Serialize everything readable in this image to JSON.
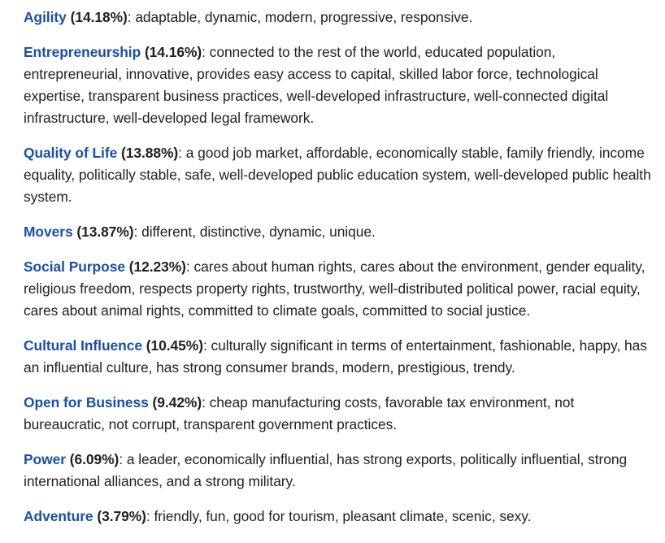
{
  "items": [
    {
      "term": "Agility",
      "pct": " (14.18%)",
      "desc": ": adaptable, dynamic, modern, progressive, responsive."
    },
    {
      "term": "Entrepreneurship",
      "pct": " (14.16%)",
      "desc": ": connected to the rest of the world, educated population, entrepreneurial, innovative, provides easy access to capital, skilled labor force, technological expertise, transparent business practices, well-developed infrastructure, well-connected digital infrastructure, well-developed legal framework."
    },
    {
      "term": "Quality of Life",
      "pct": " (13.88%)",
      "desc": ": a good job market, affordable, economically stable, family friendly, income equality, politically stable, safe, well-developed public education system, well-developed public health system."
    },
    {
      "term": "Movers",
      "pct": " (13.87%)",
      "desc": ": different, distinctive, dynamic, unique."
    },
    {
      "term": "Social Purpose",
      "pct": " (12.23%)",
      "desc": ": cares about human rights, cares about the environment, gender equality, religious freedom, respects property rights, trustworthy, well-distributed political power, racial equity, cares about animal rights, committed to climate goals, committed to social justice."
    },
    {
      "term": "Cultural Influence",
      "pct": " (10.45%)",
      "desc": ": culturally significant in terms of entertainment, fashionable, happy, has an influential culture, has strong consumer brands, modern, prestigious, trendy."
    },
    {
      "term": "Open for Business",
      "pct": " (9.42%)",
      "desc": ": cheap manufacturing costs, favorable tax environment, not bureaucratic, not corrupt, transparent government practices."
    },
    {
      "term": "Power",
      "pct": " (6.09%)",
      "desc": ": a leader, economically influential, has strong exports, politically influential, strong international alliances, and a strong military."
    },
    {
      "term": "Adventure",
      "pct": " (3.79%)",
      "desc": ": friendly, fun, good for tourism, pleasant climate, scenic, sexy."
    }
  ],
  "colors": {
    "link": "#1a4fa8",
    "text": "#202124",
    "background": "#ffffff"
  }
}
